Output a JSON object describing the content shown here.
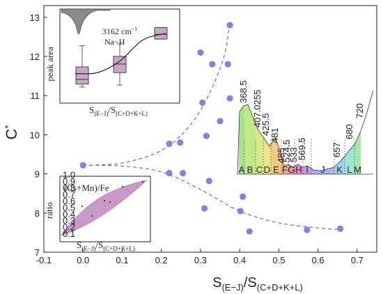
{
  "colors": {
    "point": "#8083e0",
    "guide": "#5a5fd0",
    "box": "#c9a6c9",
    "band": "#c99ac9",
    "axis": "#222222"
  },
  "chart_data": [
    {
      "type": "scatter",
      "title": "",
      "xlabel": "S",
      "xlabel_sub": "(E−J)",
      "xlabel_rest": "/S",
      "xlabel_sub2": "(C+D+K+L)",
      "ylabel": "C",
      "ylabel_sup": "*",
      "xlim": [
        -0.1,
        0.75
      ],
      "ylim": [
        7,
        13.3
      ],
      "xticks": [
        "-0.1",
        "0.0",
        "0.1",
        "0.2",
        "0.3",
        "0.4",
        "0.5",
        "0.6",
        "0.7"
      ],
      "xtick_values": [
        -0.1,
        0.0,
        0.1,
        0.2,
        0.3,
        0.4,
        0.5,
        0.6,
        0.7
      ],
      "yticks": [
        "7",
        "8",
        "9",
        "10",
        "11",
        "12",
        "13"
      ],
      "ytick_values": [
        7,
        8,
        9,
        10,
        11,
        12,
        13
      ],
      "points": [
        {
          "x": 0.0,
          "y": 9.22
        },
        {
          "x": 0.22,
          "y": 9.77
        },
        {
          "x": 0.248,
          "y": 9.8
        },
        {
          "x": 0.22,
          "y": 9.02
        },
        {
          "x": 0.255,
          "y": 9.02
        },
        {
          "x": 0.3,
          "y": 12.1
        },
        {
          "x": 0.33,
          "y": 11.8
        },
        {
          "x": 0.37,
          "y": 11.8
        },
        {
          "x": 0.375,
          "y": 12.8
        },
        {
          "x": 0.375,
          "y": 10.93
        },
        {
          "x": 0.305,
          "y": 10.82
        },
        {
          "x": 0.35,
          "y": 10.35
        },
        {
          "x": 0.315,
          "y": 9.97
        },
        {
          "x": 0.322,
          "y": 8.82
        },
        {
          "x": 0.31,
          "y": 8.12
        },
        {
          "x": 0.408,
          "y": 8.42
        },
        {
          "x": 0.402,
          "y": 8.05
        },
        {
          "x": 0.425,
          "y": 7.53
        },
        {
          "x": 0.572,
          "y": 7.57
        },
        {
          "x": 0.657,
          "y": 7.6
        }
      ],
      "guide_curves": [
        {
          "x": [
            0.0,
            0.1,
            0.2,
            0.27,
            0.32,
            0.36,
            0.375
          ],
          "y": [
            9.22,
            9.28,
            9.6,
            10.2,
            11.0,
            12.0,
            12.9
          ]
        },
        {
          "x": [
            0.0,
            0.1,
            0.2,
            0.3,
            0.4,
            0.5,
            0.6,
            0.66
          ],
          "y": [
            9.22,
            9.2,
            9.05,
            8.6,
            8.05,
            7.75,
            7.62,
            7.58
          ]
        }
      ]
    },
    {
      "type": "box",
      "ylabel": "peak area",
      "xlabel": "S",
      "xlabel_sub": "(E−J)",
      "xlabel_rest": "/S",
      "xlabel_sub2": "(C+D+K+L)",
      "annotation_line1": "3162 cm",
      "annotation_sup": "−1",
      "annotation_line2": "Na−H",
      "boxes": [
        {
          "q1": 1.2,
          "median": 1.45,
          "q3": 2.1,
          "min": 1.05,
          "max": 3.2
        },
        {
          "q1": 1.8,
          "median": 2.25,
          "q3": 2.65,
          "min": 1.15,
          "max": 3.3
        },
        {
          "q1": 3.55,
          "median": 3.8,
          "q3": 4.15,
          "min": 3.55,
          "max": 4.15
        }
      ],
      "fit": [
        1.75,
        1.8,
        2.4,
        3.5,
        3.85
      ]
    },
    {
      "type": "area",
      "labels": [
        "A",
        "B",
        "C",
        "D",
        "E",
        "F",
        "G",
        "H",
        "I",
        "J",
        "K",
        "L",
        "M"
      ],
      "peak_labels": [
        "368.5",
        "407.0255",
        "425.5",
        "481",
        "485",
        "524.5",
        "533",
        "569.5",
        "657",
        "680",
        "720"
      ]
    },
    {
      "type": "scatter",
      "ylabel": "ratio",
      "title": "(Cs+Mn)/Fe",
      "xlabel": "S",
      "xlabel_sub": "(E−J)",
      "xlabel_rest": "/S",
      "xlabel_sub2": "(C+D+K+L)",
      "yticks": [
        "0.1",
        "0.2",
        "0.3",
        "0.4",
        "0.5",
        "0.6",
        "0.7",
        "0.8",
        "0.9",
        "1.0"
      ]
    }
  ]
}
